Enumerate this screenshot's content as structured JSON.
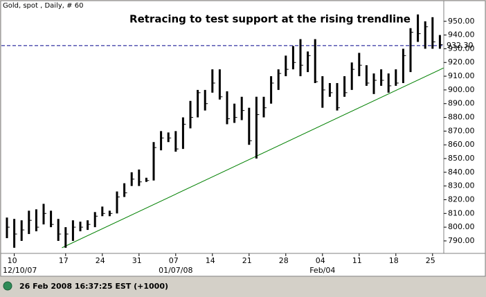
{
  "header": "Gold, spot , Daily, # 60",
  "status": "26 Feb 2008 16:37:25 EST (+1000)",
  "chart_data": {
    "type": "ohlc",
    "title": "Retracing to test support at the rising trendline",
    "color": "#000000",
    "categories": [
      null,
      "10",
      null,
      null,
      null,
      null,
      null,
      null,
      "17",
      null,
      null,
      null,
      null,
      "24",
      null,
      null,
      null,
      null,
      "31",
      null,
      null,
      null,
      null,
      "07",
      null,
      null,
      null,
      null,
      "14",
      null,
      null,
      null,
      null,
      "21",
      null,
      null,
      null,
      null,
      "28",
      null,
      null,
      null,
      null,
      "04",
      null,
      null,
      null,
      null,
      "11",
      null,
      null,
      null,
      null,
      "18",
      null,
      null,
      null,
      null,
      "25",
      null
    ],
    "sublabels": [
      null,
      "12/10/07",
      null,
      null,
      null,
      null,
      null,
      null,
      null,
      null,
      null,
      null,
      null,
      null,
      null,
      null,
      null,
      null,
      null,
      null,
      null,
      null,
      null,
      "01/07/08",
      null,
      null,
      null,
      null,
      null,
      null,
      null,
      null,
      null,
      null,
      null,
      null,
      null,
      null,
      null,
      null,
      null,
      null,
      null,
      "Feb/04",
      null,
      null,
      null,
      null,
      null,
      null,
      null,
      null,
      null,
      null,
      null,
      null,
      null,
      null,
      null,
      null
    ],
    "high": [
      807,
      806,
      805,
      812,
      813,
      817,
      812,
      806,
      800,
      805,
      804,
      805,
      811,
      815,
      812,
      826,
      832,
      840,
      842,
      836,
      862,
      870,
      869,
      870,
      880,
      892,
      900,
      900,
      915,
      915,
      899,
      890,
      895,
      887,
      895,
      895,
      910,
      915,
      925,
      932,
      937,
      928,
      937,
      910,
      905,
      905,
      910,
      920,
      927,
      918,
      912,
      915,
      912,
      915,
      930,
      945,
      955,
      950,
      953,
      940
    ],
    "low": [
      792,
      785,
      790,
      795,
      797,
      802,
      800,
      790,
      785,
      790,
      797,
      798,
      800,
      808,
      808,
      810,
      822,
      830,
      830,
      833,
      834,
      856,
      862,
      855,
      857,
      872,
      880,
      885,
      898,
      893,
      875,
      876,
      878,
      860,
      850,
      880,
      890,
      900,
      910,
      915,
      910,
      913,
      905,
      887,
      895,
      885,
      895,
      900,
      910,
      903,
      897,
      903,
      898,
      903,
      905,
      913,
      935,
      930,
      930,
      930
    ],
    "close": [
      800,
      795,
      798,
      805,
      800,
      810,
      802,
      795,
      795,
      800,
      800,
      802,
      808,
      810,
      810,
      822,
      825,
      835,
      833,
      834,
      858,
      865,
      865,
      857,
      875,
      880,
      898,
      890,
      905,
      895,
      879,
      880,
      885,
      863,
      882,
      887,
      905,
      912,
      915,
      920,
      918,
      925,
      906,
      900,
      898,
      887,
      898,
      915,
      918,
      905,
      907,
      907,
      903,
      905,
      925,
      942,
      941,
      946,
      935,
      933
    ],
    "ylim": [
      781.4,
      963
    ],
    "yticks": [
      {
        "value": 790,
        "label": "790.00"
      },
      {
        "value": 800,
        "label": "800.00"
      },
      {
        "value": 810,
        "label": "810.00"
      },
      {
        "value": 820,
        "label": "820.00"
      },
      {
        "value": 830,
        "label": "830.00"
      },
      {
        "value": 840,
        "label": "840.00"
      },
      {
        "value": 850,
        "label": "850.00"
      },
      {
        "value": 860,
        "label": "860.00"
      },
      {
        "value": 870,
        "label": "870.00"
      },
      {
        "value": 880,
        "label": "880.00"
      },
      {
        "value": 890,
        "label": "890.00"
      },
      {
        "value": 900,
        "label": "900.00"
      },
      {
        "value": 910,
        "label": "910.00"
      },
      {
        "value": 920,
        "label": "920.00"
      },
      {
        "value": 930,
        "label": "930.00"
      },
      {
        "value": 940,
        "label": "940.00"
      },
      {
        "value": 950,
        "label": "950.00"
      }
    ],
    "hline": {
      "value": 932.3,
      "label": "932.30",
      "color": "#00008b"
    },
    "trendline": {
      "x": [
        7.5,
        59.5
      ],
      "values": [
        785,
        916
      ],
      "color": "#008000"
    },
    "title_color": "#008000"
  }
}
